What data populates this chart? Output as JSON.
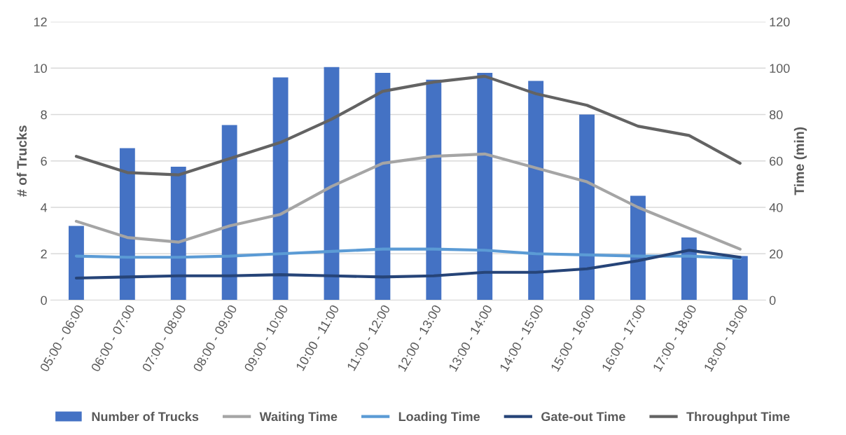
{
  "chart_data": {
    "type": "bar",
    "ylabel": "# of Trucks",
    "y2label": "Time (min)",
    "categories": [
      "05:00 - 06:00",
      "06:00 - 07:00",
      "07:00 - 08:00",
      "08:00 - 09:00",
      "09:00 - 10:00",
      "10:00 - 11:00",
      "11:00 - 12:00",
      "12:00 - 13:00",
      "13:00 - 14:00",
      "14:00 - 15:00",
      "15:00 - 16:00",
      "16:00 - 17:00",
      "17:00 - 18:00",
      "18:00 - 19:00"
    ],
    "series": [
      {
        "name": "Number of Trucks",
        "color": "#4472c4",
        "values": [
          3.2,
          6.55,
          5.75,
          7.55,
          9.6,
          10.05,
          9.8,
          9.5,
          9.8,
          9.45,
          8.0,
          4.5,
          2.7,
          1.9
        ]
      },
      {
        "name": "Waiting Time",
        "type": "line",
        "axis": "y2",
        "color": "#a5a5a5",
        "values": [
          34,
          27,
          25,
          32,
          37,
          49,
          59,
          62,
          63,
          57,
          51,
          40,
          31,
          22
        ]
      },
      {
        "name": "Loading Time",
        "type": "line",
        "axis": "y2",
        "color": "#5b9bd5",
        "values": [
          19,
          18.5,
          18.5,
          19,
          20,
          21,
          22,
          22,
          21.5,
          20,
          19.5,
          19,
          19,
          18
        ]
      },
      {
        "name": "Gate-out Time",
        "type": "line",
        "axis": "y2",
        "color": "#264478",
        "values": [
          9.5,
          10,
          10.5,
          10.5,
          11,
          10.5,
          10,
          10.5,
          12,
          12,
          13.5,
          17,
          21.5,
          18.5
        ]
      },
      {
        "name": "Throughput Time",
        "type": "line",
        "axis": "y2",
        "color": "#636363",
        "values": [
          62,
          55,
          54,
          61,
          68,
          78,
          90,
          94,
          96.5,
          89,
          84,
          75,
          71,
          59
        ]
      }
    ],
    "ylim": [
      0,
      12
    ],
    "yticks": [
      0,
      2,
      4,
      6,
      8,
      10,
      12
    ],
    "y2lim": [
      0,
      120
    ],
    "y2ticks": [
      0,
      20,
      40,
      60,
      80,
      100,
      120
    ],
    "grid": "y",
    "legend": "bottom",
    "marker": "none",
    "line_style": "solid"
  }
}
